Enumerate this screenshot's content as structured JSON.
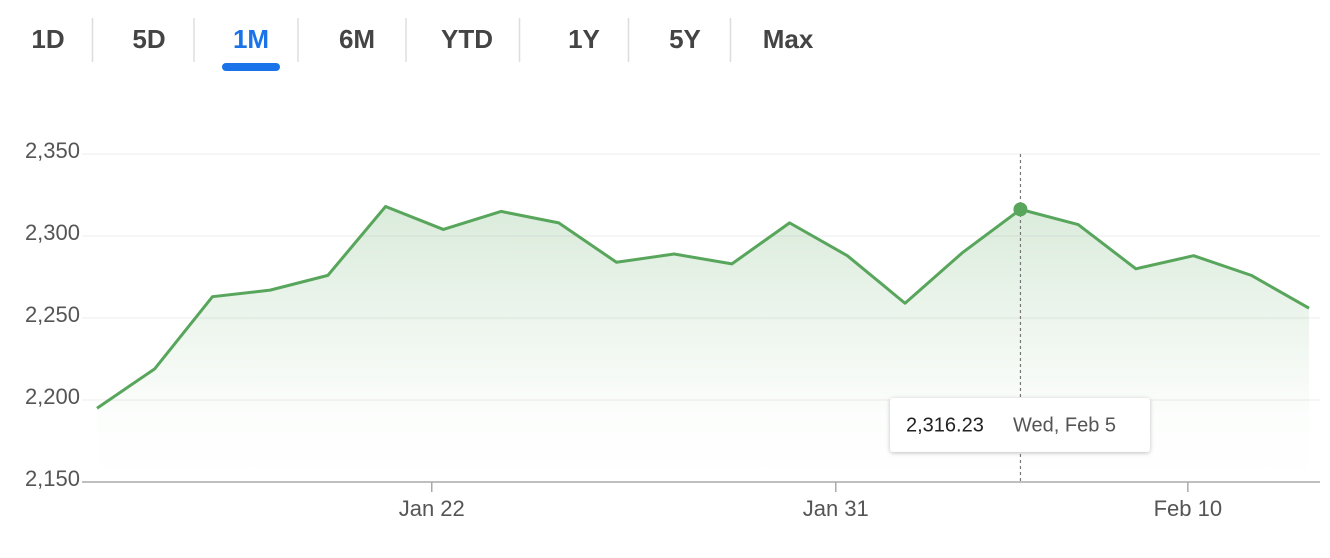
{
  "tabs": [
    "1D",
    "5D",
    "1M",
    "6M",
    "YTD",
    "1Y",
    "5Y",
    "Max"
  ],
  "active_tab": "1M",
  "chart_data": {
    "type": "line",
    "color": "#58a55c",
    "x": [
      0,
      1,
      2,
      3,
      4,
      5,
      6,
      7,
      8,
      9,
      10,
      11,
      12,
      13,
      14,
      15,
      16,
      17,
      18,
      19,
      20,
      21
    ],
    "values": [
      2195,
      2219,
      2263,
      2267,
      2276,
      2318,
      2304,
      2315,
      2308,
      2284,
      2289,
      2283,
      2308,
      2288,
      2259,
      2290,
      2316.23,
      2307,
      2280,
      2288,
      2276,
      2256
    ],
    "xlim": [
      -0.26,
      21.19
    ],
    "xticks": [
      {
        "value": 5.8,
        "label": "Jan 22"
      },
      {
        "value": 12.8,
        "label": "Jan 31"
      },
      {
        "value": 18.9,
        "label": "Feb 10"
      }
    ],
    "ylim": [
      2150,
      2350
    ],
    "yticks": [
      {
        "value": 2150,
        "label": "2,150"
      },
      {
        "value": 2200,
        "label": "2,200"
      },
      {
        "value": 2250,
        "label": "2,250"
      },
      {
        "value": 2300,
        "label": "2,300"
      },
      {
        "value": 2350,
        "label": "2,350"
      }
    ],
    "grid": true,
    "tooltip": {
      "value": "2,316.23",
      "date": "Wed, Feb 5"
    }
  }
}
